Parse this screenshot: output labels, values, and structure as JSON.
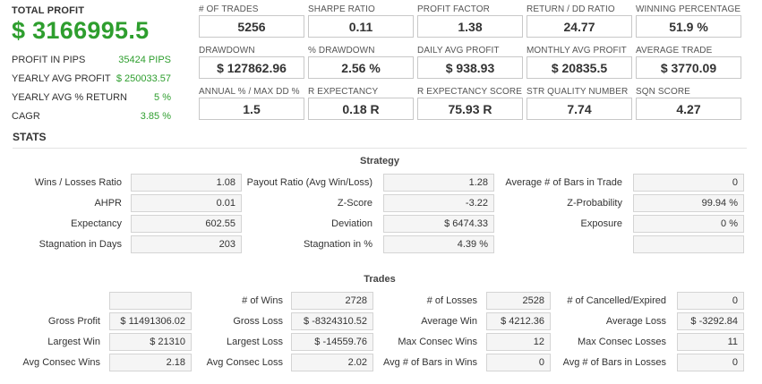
{
  "summary": {
    "total_profit_label": "TOTAL PROFIT",
    "total_profit_value": "$ 3166995.5",
    "rows": [
      {
        "label": "PROFIT IN PIPS",
        "value": "35424 PIPS"
      },
      {
        "label": "YEARLY AVG PROFIT",
        "value": "$ 250033.57"
      },
      {
        "label": "YEARLY AVG % RETURN",
        "value": "5 %"
      },
      {
        "label": "CAGR",
        "value": "3.85 %"
      }
    ]
  },
  "metrics": [
    {
      "label": "# OF TRADES",
      "value": "5256"
    },
    {
      "label": "SHARPE RATIO",
      "value": "0.11"
    },
    {
      "label": "PROFIT FACTOR",
      "value": "1.38"
    },
    {
      "label": "RETURN / DD RATIO",
      "value": "24.77"
    },
    {
      "label": "WINNING PERCENTAGE",
      "value": "51.9 %"
    },
    {
      "label": "DRAWDOWN",
      "value": "$ 127862.96"
    },
    {
      "label": "% DRAWDOWN",
      "value": "2.56 %"
    },
    {
      "label": "DAILY AVG PROFIT",
      "value": "$ 938.93"
    },
    {
      "label": "MONTHLY AVG PROFIT",
      "value": "$ 20835.5"
    },
    {
      "label": "AVERAGE TRADE",
      "value": "$ 3770.09"
    },
    {
      "label": "ANNUAL % / MAX DD %",
      "value": "1.5"
    },
    {
      "label": "R EXPECTANCY",
      "value": "0.18 R"
    },
    {
      "label": "R EXPECTANCY SCORE",
      "value": "75.93 R"
    },
    {
      "label": "STR QUALITY NUMBER",
      "value": "7.74"
    },
    {
      "label": "SQN SCORE",
      "value": "4.27"
    }
  ],
  "stats_title": "STATS",
  "strategy": {
    "title": "Strategy",
    "rows": [
      [
        {
          "label": "Wins / Losses Ratio",
          "value": "1.08"
        },
        {
          "label": "Payout Ratio (Avg Win/Loss)",
          "value": "1.28"
        },
        {
          "label": "Average # of Bars in Trade",
          "value": "0"
        }
      ],
      [
        {
          "label": "AHPR",
          "value": "0.01"
        },
        {
          "label": "Z-Score",
          "value": "-3.22"
        },
        {
          "label": "Z-Probability",
          "value": "99.94 %"
        }
      ],
      [
        {
          "label": "Expectancy",
          "value": "602.55"
        },
        {
          "label": "Deviation",
          "value": "$ 6474.33"
        },
        {
          "label": "Exposure",
          "value": "0 %"
        }
      ],
      [
        {
          "label": "Stagnation in Days",
          "value": "203"
        },
        {
          "label": "Stagnation in %",
          "value": "4.39 %"
        },
        {
          "label": "",
          "value": ""
        }
      ]
    ]
  },
  "trades": {
    "title": "Trades",
    "rows": [
      [
        {
          "label": "",
          "value": ""
        },
        {
          "label": "# of Wins",
          "value": "2728"
        },
        {
          "label": "# of Losses",
          "value": "2528"
        },
        {
          "label": "# of Cancelled/Expired",
          "value": "0"
        }
      ],
      [
        {
          "label": "Gross Profit",
          "value": "$ 11491306.02"
        },
        {
          "label": "Gross Loss",
          "value": "$ -8324310.52"
        },
        {
          "label": "Average Win",
          "value": "$ 4212.36"
        },
        {
          "label": "Average Loss",
          "value": "$ -3292.84"
        }
      ],
      [
        {
          "label": "Largest Win",
          "value": "$ 21310"
        },
        {
          "label": "Largest Loss",
          "value": "$ -14559.76"
        },
        {
          "label": "Max Consec Wins",
          "value": "12"
        },
        {
          "label": "Max Consec Losses",
          "value": "11"
        }
      ],
      [
        {
          "label": "Avg Consec Wins",
          "value": "2.18"
        },
        {
          "label": "Avg Consec Loss",
          "value": "2.02"
        },
        {
          "label": "Avg # of Bars in Wins",
          "value": "0"
        },
        {
          "label": "Avg # of Bars in Losses",
          "value": "0"
        }
      ]
    ]
  }
}
